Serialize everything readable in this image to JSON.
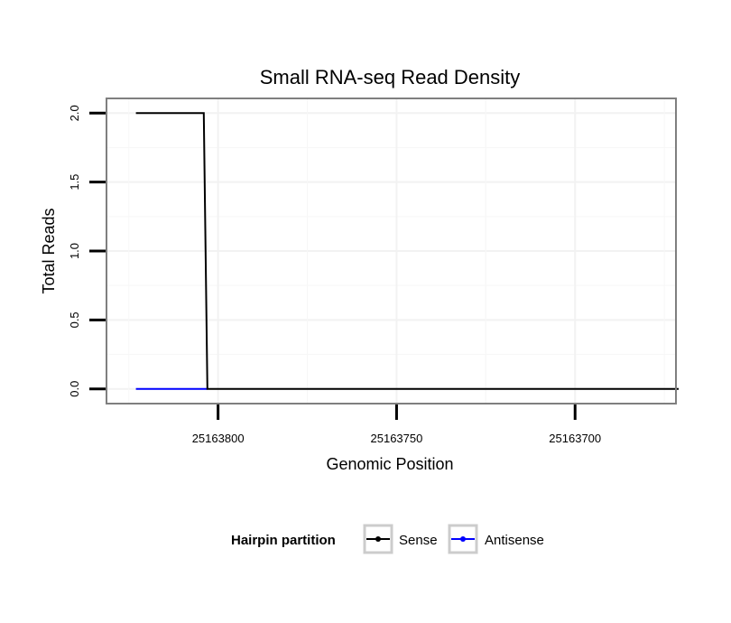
{
  "chart_data": {
    "type": "line",
    "title": "Small RNA-seq Read Density",
    "xlabel": "Genomic Position",
    "ylabel": "Total Reads",
    "x_reversed": true,
    "xlim": [
      25163831,
      25163672
    ],
    "ylim": [
      -0.1,
      2.1
    ],
    "x_ticks": [
      25163800,
      25163750,
      25163700
    ],
    "x_tick_labels": [
      "25163800",
      "25163750",
      "25163700"
    ],
    "y_ticks": [
      0.0,
      0.5,
      1.0,
      1.5,
      2.0
    ],
    "y_tick_labels": [
      "0.0",
      "0.5",
      "1.0",
      "1.5",
      "2.0"
    ],
    "grid": true,
    "legend": {
      "title": "Hairpin partition",
      "position": "bottom"
    },
    "series": [
      {
        "name": "Sense",
        "color": "#000000",
        "x": [
          25163823,
          25163804,
          25163803,
          25163671
        ],
        "y": [
          2,
          2,
          0,
          0
        ]
      },
      {
        "name": "Antisense",
        "color": "#0000ff",
        "x": [
          25163823,
          25163803
        ],
        "y": [
          0,
          0
        ]
      }
    ]
  }
}
